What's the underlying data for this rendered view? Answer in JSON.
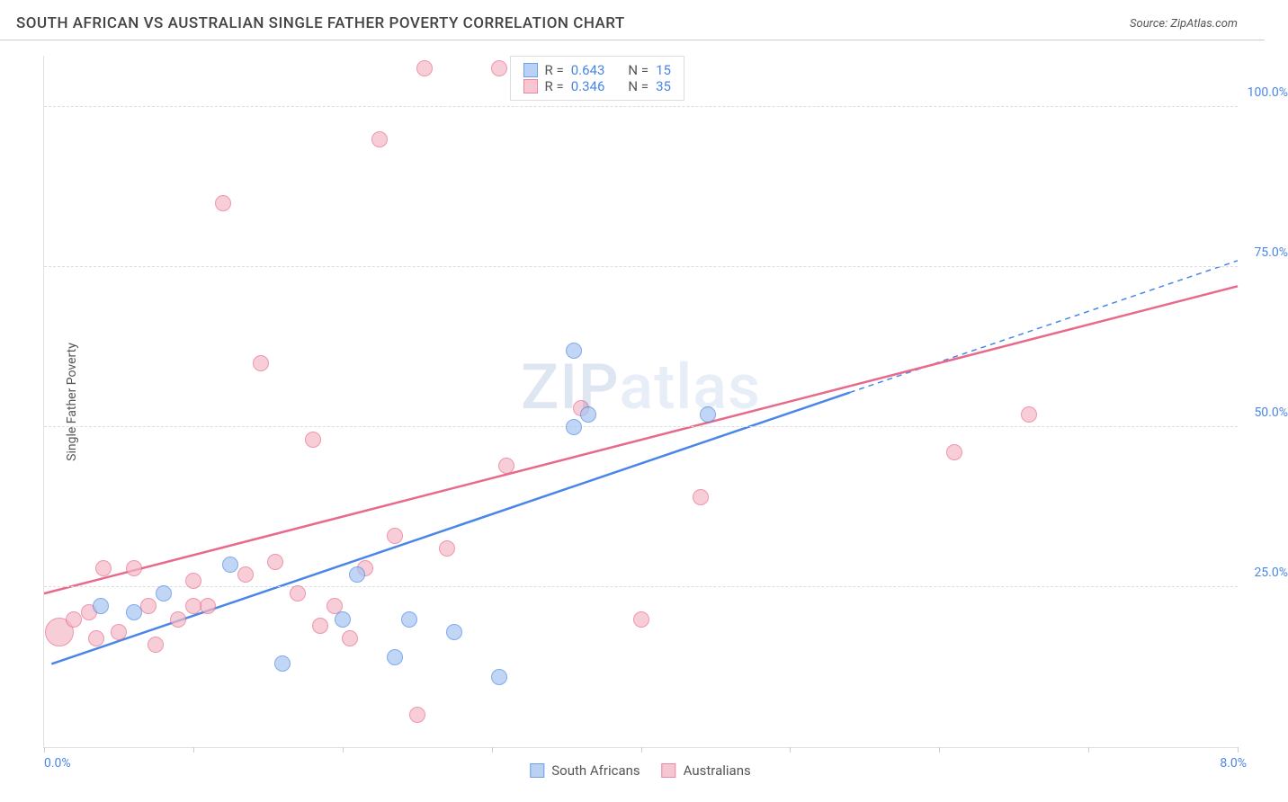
{
  "title": "SOUTH AFRICAN VS AUSTRALIAN SINGLE FATHER POVERTY CORRELATION CHART",
  "source": "Source: ZipAtlas.com",
  "watermark": "ZIPatlas",
  "chart": {
    "type": "scatter",
    "ylabel": "Single Father Poverty",
    "xlim": [
      0,
      8
    ],
    "ylim": [
      0,
      108
    ],
    "xtick_positions": [
      0,
      1,
      2,
      3,
      4,
      5,
      6,
      7,
      8
    ],
    "xlim_labels": {
      "left": "0.0%",
      "right": "8.0%"
    },
    "ytick_positions": [
      25,
      50,
      75,
      100
    ],
    "ytick_labels": [
      "25.0%",
      "50.0%",
      "75.0%",
      "100.0%"
    ],
    "marker_radius": 9,
    "marker_stroke_width": 1.5,
    "marker_fill_opacity": 0.35,
    "trend_line_width": 2.5,
    "grid_color": "#dddddd",
    "axis_color": "#e0e0e0",
    "label_fontsize": 14,
    "label_color": "#4a86e8",
    "background_color": "#ffffff",
    "series": [
      {
        "key": "south_africans",
        "label": "South Africans",
        "stroke": "#4a86e8",
        "fill": "#a8c6f0",
        "r_value": "0.643",
        "n_value": "15",
        "trend": {
          "x1": 0.05,
          "y1": 13,
          "x2": 8.0,
          "y2": 76,
          "dashed_from_x": 5.4
        },
        "points": [
          {
            "x": 0.38,
            "y": 22
          },
          {
            "x": 0.8,
            "y": 24
          },
          {
            "x": 1.25,
            "y": 28.5
          },
          {
            "x": 1.6,
            "y": 13
          },
          {
            "x": 2.0,
            "y": 20
          },
          {
            "x": 2.1,
            "y": 27
          },
          {
            "x": 2.45,
            "y": 20
          },
          {
            "x": 2.75,
            "y": 18
          },
          {
            "x": 3.05,
            "y": 11
          },
          {
            "x": 3.55,
            "y": 50
          },
          {
            "x": 3.65,
            "y": 52
          },
          {
            "x": 4.45,
            "y": 52
          },
          {
            "x": 3.55,
            "y": 62
          },
          {
            "x": 0.6,
            "y": 21
          },
          {
            "x": 2.35,
            "y": 14
          }
        ]
      },
      {
        "key": "australians",
        "label": "Australians",
        "stroke": "#e86a8a",
        "fill": "#f5b8c8",
        "r_value": "0.346",
        "n_value": "35",
        "trend": {
          "x1": 0.0,
          "y1": 24,
          "x2": 8.0,
          "y2": 72
        },
        "points": [
          {
            "x": 0.1,
            "y": 18,
            "r": 16
          },
          {
            "x": 0.2,
            "y": 20
          },
          {
            "x": 0.3,
            "y": 21
          },
          {
            "x": 0.35,
            "y": 17
          },
          {
            "x": 0.4,
            "y": 28
          },
          {
            "x": 0.5,
            "y": 18
          },
          {
            "x": 0.6,
            "y": 28
          },
          {
            "x": 0.7,
            "y": 22
          },
          {
            "x": 0.75,
            "y": 16
          },
          {
            "x": 0.9,
            "y": 20
          },
          {
            "x": 1.0,
            "y": 26
          },
          {
            "x": 1.1,
            "y": 22
          },
          {
            "x": 1.2,
            "y": 85
          },
          {
            "x": 1.35,
            "y": 27
          },
          {
            "x": 1.45,
            "y": 60
          },
          {
            "x": 1.55,
            "y": 29
          },
          {
            "x": 1.7,
            "y": 24
          },
          {
            "x": 1.8,
            "y": 48
          },
          {
            "x": 1.85,
            "y": 19
          },
          {
            "x": 1.95,
            "y": 22
          },
          {
            "x": 2.05,
            "y": 17
          },
          {
            "x": 2.15,
            "y": 28
          },
          {
            "x": 2.25,
            "y": 95
          },
          {
            "x": 2.35,
            "y": 33
          },
          {
            "x": 2.5,
            "y": 5
          },
          {
            "x": 2.55,
            "y": 106
          },
          {
            "x": 2.7,
            "y": 31
          },
          {
            "x": 3.05,
            "y": 106
          },
          {
            "x": 3.1,
            "y": 44
          },
          {
            "x": 3.6,
            "y": 53
          },
          {
            "x": 4.0,
            "y": 20
          },
          {
            "x": 4.4,
            "y": 39
          },
          {
            "x": 6.1,
            "y": 46
          },
          {
            "x": 6.6,
            "y": 52
          },
          {
            "x": 1.0,
            "y": 22
          }
        ]
      }
    ],
    "legend_top_rows": [
      {
        "swatch_series": 0,
        "r_label": "R =",
        "r_val": "0.643",
        "n_label": "N =",
        "n_val": "15"
      },
      {
        "swatch_series": 1,
        "r_label": "R =",
        "r_val": "0.346",
        "n_label": "N =",
        "n_val": "35"
      }
    ]
  }
}
